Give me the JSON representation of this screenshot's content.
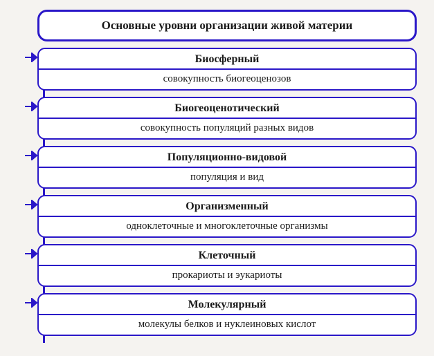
{
  "type": "hierarchy-flow",
  "background_color": "#f5f3f0",
  "border_color": "#2a17c8",
  "text_color": "#1a1a1a",
  "header": {
    "text": "Основные уровни организации живой материи",
    "border_width": 3,
    "fontsize": 17
  },
  "box_border_width": 2,
  "box_radius": 11,
  "title_fontsize": 16,
  "desc_fontsize": 15,
  "arrow_color": "#2a17c8",
  "trunk_height": 422,
  "levels": [
    {
      "title": "Биосферный",
      "desc": "совокупность биогеоценозов"
    },
    {
      "title": "Биогеоценотический",
      "desc": "совокупность популяций разных видов"
    },
    {
      "title": "Популяционно-видовой",
      "desc": "популяция и вид"
    },
    {
      "title": "Организменный",
      "desc": "одноклеточные и многоклеточные организмы"
    },
    {
      "title": "Клеточный",
      "desc": "прокариоты и эукариоты"
    },
    {
      "title": "Молекулярный",
      "desc": "молекулы белков и нуклеиновых кислот"
    }
  ]
}
